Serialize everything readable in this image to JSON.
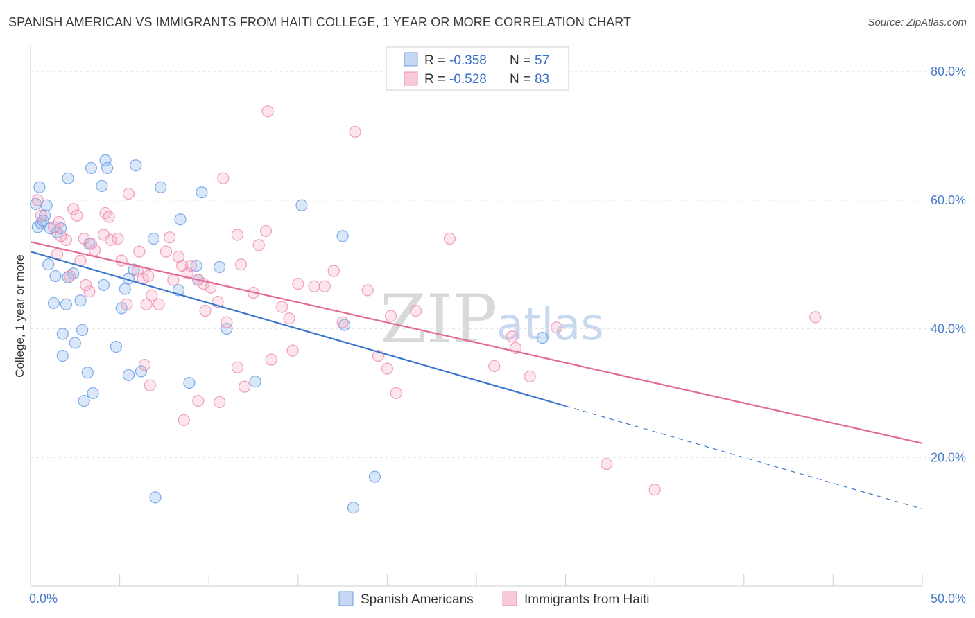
{
  "title": "SPANISH AMERICAN VS IMMIGRANTS FROM HAITI COLLEGE, 1 YEAR OR MORE CORRELATION CHART",
  "source": "Source: ZipAtlas.com",
  "watermark": {
    "zip": "ZIP",
    "atlas": "atlas"
  },
  "colors": {
    "blue": "#6a9ee8",
    "blue_line": "#3a76cc",
    "pink": "#ee8fae",
    "pink_line": "#e26a93"
  },
  "legend_box": {
    "rows": [
      {
        "r_label": "R = ",
        "r_value": "-0.358",
        "n_label": "N = ",
        "n_value": "57"
      },
      {
        "r_label": "R = ",
        "r_value": "-0.528",
        "n_label": "N = ",
        "n_value": "83"
      }
    ]
  },
  "chart_data": {
    "type": "scatter",
    "title": "SPANISH AMERICAN VS IMMIGRANTS FROM HAITI COLLEGE, 1 YEAR OR MORE CORRELATION CHART",
    "xlabel": "",
    "ylabel": "College, 1 year or more",
    "xlim": [
      0,
      50
    ],
    "ylim": [
      0,
      84
    ],
    "x_ticks": [
      "0.0%",
      "50.0%"
    ],
    "y_ticks": [
      {
        "value": 80,
        "label": "80.0%"
      },
      {
        "value": 60,
        "label": "60.0%"
      },
      {
        "value": 40,
        "label": "40.0%"
      },
      {
        "value": 20,
        "label": "20.0%"
      }
    ],
    "grid": true,
    "legend_position": "bottom",
    "series": [
      {
        "name": "Spanish Americans",
        "r": -0.358,
        "n": 57,
        "trend": {
          "x0": 0,
          "y0": 52.0,
          "x1": 30,
          "y1": 28.0,
          "dash_to_x": 50,
          "dash_to_y": 12.0
        },
        "points": [
          [
            0.3,
            59.4
          ],
          [
            0.5,
            62.0
          ],
          [
            0.4,
            55.8
          ],
          [
            0.9,
            59.2
          ],
          [
            1.1,
            55.6
          ],
          [
            0.6,
            56.4
          ],
          [
            0.8,
            57.6
          ],
          [
            1.5,
            55.0
          ],
          [
            1.7,
            55.6
          ],
          [
            1.0,
            50.0
          ],
          [
            1.4,
            48.2
          ],
          [
            2.1,
            48.0
          ],
          [
            2.4,
            48.6
          ],
          [
            1.3,
            44.0
          ],
          [
            2.0,
            43.8
          ],
          [
            2.8,
            44.4
          ],
          [
            1.8,
            39.2
          ],
          [
            2.5,
            37.8
          ],
          [
            2.9,
            39.8
          ],
          [
            1.8,
            35.8
          ],
          [
            3.2,
            33.2
          ],
          [
            3.0,
            28.8
          ],
          [
            3.5,
            30.0
          ],
          [
            3.3,
            53.2
          ],
          [
            2.1,
            63.4
          ],
          [
            3.4,
            65.0
          ],
          [
            4.0,
            62.2
          ],
          [
            4.2,
            66.2
          ],
          [
            4.3,
            65.0
          ],
          [
            5.9,
            65.4
          ],
          [
            7.3,
            62.0
          ],
          [
            4.1,
            46.8
          ],
          [
            5.1,
            43.2
          ],
          [
            5.3,
            46.2
          ],
          [
            5.5,
            47.8
          ],
          [
            5.8,
            49.2
          ],
          [
            4.8,
            37.2
          ],
          [
            5.5,
            32.8
          ],
          [
            6.2,
            33.4
          ],
          [
            6.9,
            54.0
          ],
          [
            8.4,
            57.0
          ],
          [
            9.6,
            61.2
          ],
          [
            8.3,
            46.0
          ],
          [
            9.3,
            49.8
          ],
          [
            9.4,
            47.6
          ],
          [
            10.6,
            49.6
          ],
          [
            11.0,
            40.0
          ],
          [
            8.9,
            31.6
          ],
          [
            12.6,
            31.8
          ],
          [
            15.2,
            59.2
          ],
          [
            17.5,
            54.4
          ],
          [
            17.6,
            40.6
          ],
          [
            18.1,
            12.2
          ],
          [
            19.3,
            17.0
          ],
          [
            7.0,
            13.8
          ],
          [
            28.7,
            38.6
          ],
          [
            0.7,
            56.8
          ]
        ]
      },
      {
        "name": "Immigrants from Haiti",
        "r": -0.528,
        "n": 83,
        "trend": {
          "x0": 0,
          "y0": 53.5,
          "x1": 50,
          "y1": 22.2
        },
        "points": [
          [
            0.4,
            60.0
          ],
          [
            0.6,
            57.6
          ],
          [
            1.3,
            55.8
          ],
          [
            1.6,
            56.6
          ],
          [
            2.0,
            53.8
          ],
          [
            1.7,
            54.4
          ],
          [
            1.5,
            51.6
          ],
          [
            2.2,
            48.2
          ],
          [
            2.4,
            58.6
          ],
          [
            2.6,
            57.6
          ],
          [
            3.0,
            54.0
          ],
          [
            2.8,
            50.6
          ],
          [
            3.4,
            53.2
          ],
          [
            3.6,
            52.2
          ],
          [
            3.3,
            45.8
          ],
          [
            4.1,
            54.6
          ],
          [
            4.2,
            58.0
          ],
          [
            4.4,
            57.4
          ],
          [
            4.5,
            53.8
          ],
          [
            4.9,
            54.0
          ],
          [
            5.1,
            50.6
          ],
          [
            5.4,
            43.8
          ],
          [
            5.5,
            61.0
          ],
          [
            6.0,
            49.0
          ],
          [
            6.1,
            52.0
          ],
          [
            6.3,
            47.8
          ],
          [
            6.5,
            43.8
          ],
          [
            6.6,
            48.2
          ],
          [
            6.8,
            45.2
          ],
          [
            7.2,
            43.8
          ],
          [
            7.6,
            52.0
          ],
          [
            7.8,
            54.2
          ],
          [
            8.0,
            47.6
          ],
          [
            8.3,
            51.2
          ],
          [
            8.5,
            49.8
          ],
          [
            8.8,
            48.6
          ],
          [
            9.0,
            49.8
          ],
          [
            9.4,
            47.6
          ],
          [
            9.7,
            47.0
          ],
          [
            9.8,
            42.8
          ],
          [
            10.1,
            46.4
          ],
          [
            10.5,
            44.2
          ],
          [
            10.8,
            63.4
          ],
          [
            11.0,
            41.0
          ],
          [
            11.6,
            54.6
          ],
          [
            11.8,
            50.0
          ],
          [
            12.5,
            45.6
          ],
          [
            12.8,
            53.0
          ],
          [
            13.2,
            55.2
          ],
          [
            13.5,
            35.2
          ],
          [
            14.1,
            43.4
          ],
          [
            14.5,
            41.6
          ],
          [
            15.0,
            47.0
          ],
          [
            15.9,
            46.6
          ],
          [
            16.5,
            46.6
          ],
          [
            17.0,
            49.0
          ],
          [
            17.5,
            41.0
          ],
          [
            18.2,
            70.6
          ],
          [
            18.9,
            46.0
          ],
          [
            19.5,
            35.8
          ],
          [
            20.0,
            33.8
          ],
          [
            20.5,
            30.0
          ],
          [
            21.6,
            42.8
          ],
          [
            23.5,
            54.0
          ],
          [
            13.3,
            73.8
          ],
          [
            6.4,
            34.4
          ],
          [
            6.7,
            31.2
          ],
          [
            8.6,
            25.8
          ],
          [
            9.4,
            28.8
          ],
          [
            10.6,
            28.6
          ],
          [
            11.6,
            34.0
          ],
          [
            12.0,
            31.0
          ],
          [
            14.7,
            36.6
          ],
          [
            20.2,
            42.0
          ],
          [
            26.0,
            34.2
          ],
          [
            27.0,
            38.8
          ],
          [
            27.2,
            37.0
          ],
          [
            28.0,
            32.6
          ],
          [
            29.5,
            40.2
          ],
          [
            32.3,
            19.0
          ],
          [
            35.0,
            15.0
          ],
          [
            44.0,
            41.8
          ],
          [
            3.1,
            46.8
          ]
        ]
      }
    ]
  }
}
